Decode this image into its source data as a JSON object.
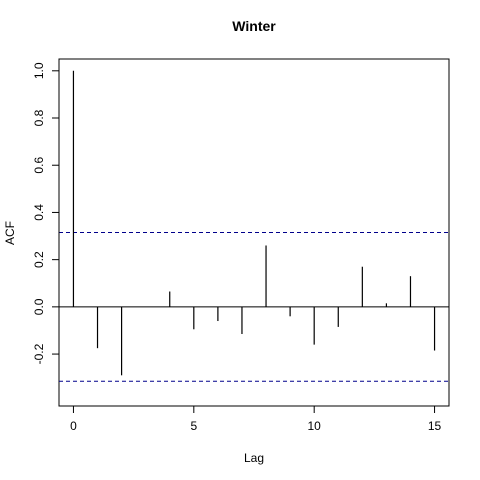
{
  "chart_data": {
    "type": "bar",
    "title": "Winter",
    "xlabel": "Lag",
    "ylabel": "ACF",
    "xlim": [
      -0.6,
      15.6
    ],
    "ylim": [
      -0.42,
      1.05
    ],
    "x": [
      0,
      1,
      2,
      3,
      4,
      5,
      6,
      7,
      8,
      9,
      10,
      11,
      12,
      13,
      14,
      15
    ],
    "values": [
      1.0,
      -0.175,
      -0.29,
      0.0,
      0.065,
      -0.095,
      -0.06,
      -0.115,
      0.26,
      -0.04,
      -0.16,
      -0.085,
      0.17,
      0.015,
      0.13,
      -0.185
    ],
    "x_ticks": [
      "0",
      "5",
      "10",
      "15"
    ],
    "y_ticks": [
      "-0.2",
      "0.0",
      "0.2",
      "0.4",
      "0.6",
      "0.8",
      "1.0"
    ],
    "confidence_bounds": [
      0.315,
      -0.315
    ],
    "zero_line": 0,
    "bound_color": "#00008b",
    "grid": false,
    "legend": "none"
  }
}
